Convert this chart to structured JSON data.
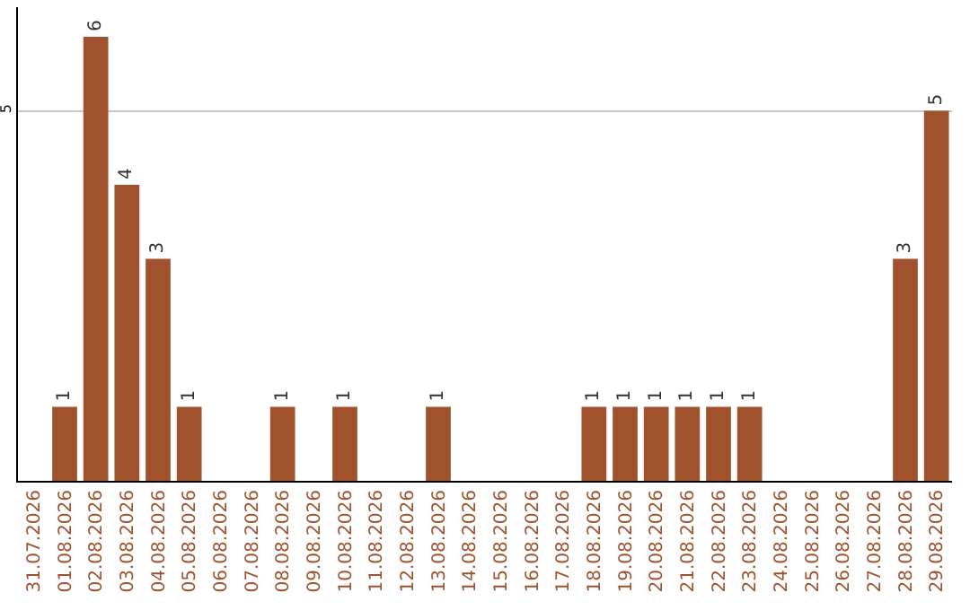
{
  "chart_data": {
    "type": "bar",
    "categories": [
      "31.07.2026",
      "01.08.2026",
      "02.08.2026",
      "03.08.2026",
      "04.08.2026",
      "05.08.2026",
      "06.08.2026",
      "07.08.2026",
      "08.08.2026",
      "09.08.2026",
      "10.08.2026",
      "11.08.2026",
      "12.08.2026",
      "13.08.2026",
      "14.08.2026",
      "15.08.2026",
      "16.08.2026",
      "17.08.2026",
      "18.08.2026",
      "19.08.2026",
      "20.08.2026",
      "21.08.2026",
      "22.08.2026",
      "23.08.2026",
      "24.08.2026",
      "25.08.2026",
      "26.08.2026",
      "27.08.2026",
      "28.08.2026",
      "29.08.2026"
    ],
    "values": [
      0,
      1,
      6,
      4,
      3,
      1,
      0,
      0,
      1,
      0,
      1,
      0,
      0,
      1,
      0,
      0,
      0,
      0,
      1,
      1,
      1,
      1,
      1,
      1,
      0,
      0,
      0,
      0,
      3,
      5
    ],
    "value_labels": [
      null,
      "1",
      "6",
      "4",
      "3",
      "1",
      null,
      null,
      "1",
      null,
      "1",
      null,
      null,
      "1",
      null,
      null,
      null,
      null,
      "1",
      "1",
      "1",
      "1",
      "1",
      "1",
      null,
      null,
      null,
      null,
      "3",
      "5"
    ],
    "color": "#a0522d",
    "ylim": [
      0,
      6.4
    ],
    "yticks": [
      5
    ],
    "grid": "y",
    "legend": false
  }
}
